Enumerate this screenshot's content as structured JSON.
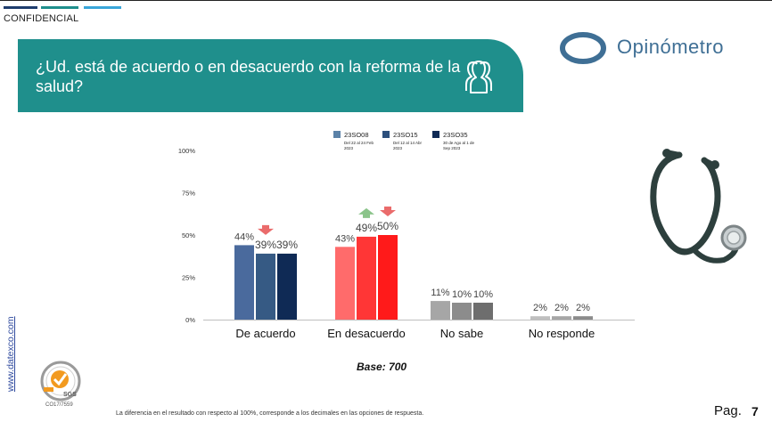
{
  "header": {
    "confidential": "CONFIDENCIAL",
    "stripe_colors": [
      "#1f3d6d",
      "#1f8f8c",
      "#3aa6d9"
    ]
  },
  "banner": {
    "question": "¿Ud. está de acuerdo o en desacuerdo con la reforma de la salud?",
    "icon": "people-group-icon",
    "bg_color": "#1f8f8c"
  },
  "logo": {
    "name": "Opinómetro",
    "color": "#3f6f95"
  },
  "legend": [
    {
      "label": "23SO08",
      "sub": "Del 22 al 24 Feb 2023",
      "color": "#5b82a8"
    },
    {
      "label": "23SO15",
      "sub": "Del 12 al 14 Abr 2023",
      "color": "#2c4f7c"
    },
    {
      "label": "23SO35",
      "sub": "30 de Ago al 1 de Sep 2023",
      "color": "#0f2a55"
    }
  ],
  "chart_data": {
    "type": "bar",
    "categories": [
      "De acuerdo",
      "En desacuerdo",
      "No sabe",
      "No responde"
    ],
    "series": [
      {
        "name": "23SO08",
        "values": [
          44,
          43,
          11,
          2
        ]
      },
      {
        "name": "23SO15",
        "values": [
          39,
          49,
          10,
          2
        ]
      },
      {
        "name": "23SO35",
        "values": [
          39,
          50,
          10,
          2
        ]
      }
    ],
    "value_labels": [
      [
        "44%",
        "39%",
        "39%"
      ],
      [
        "43%",
        "49%",
        "50%"
      ],
      [
        "11%",
        "10%",
        "10%"
      ],
      [
        "2%",
        "2%",
        "2%"
      ]
    ],
    "category_colors": [
      [
        "#4a6a9d",
        "#365a84",
        "#0f2a55"
      ],
      [
        "#ff6b6b",
        "#ff3636",
        "#ff1a1a"
      ],
      [
        "#a6a6a6",
        "#8c8c8c",
        "#6e6e6e"
      ],
      [
        "#bfbfbf",
        "#a6a6a6",
        "#8c8c8c"
      ]
    ],
    "yticks": [
      "100%",
      "75%",
      "50%",
      "25%",
      "0%"
    ],
    "ylim": [
      0,
      100
    ],
    "change_arrows": [
      {
        "category": 0,
        "series": 1,
        "direction": "down",
        "color": "#ea6b6b"
      },
      {
        "category": 1,
        "series": 1,
        "direction": "up",
        "color": "#8bc48a"
      },
      {
        "category": 1,
        "series": 2,
        "direction": "down",
        "color": "#ea6b6b"
      }
    ]
  },
  "base_text": "Base: 700",
  "side_url": "www.datexco.com",
  "cert": {
    "label": "SGS",
    "code": "CO17/7559"
  },
  "footnote": "La diferencia en el resultado con respecto al 100%, corresponde a los decimales en las opciones de respuesta.",
  "page": {
    "label": "Pag.",
    "number": "7"
  }
}
